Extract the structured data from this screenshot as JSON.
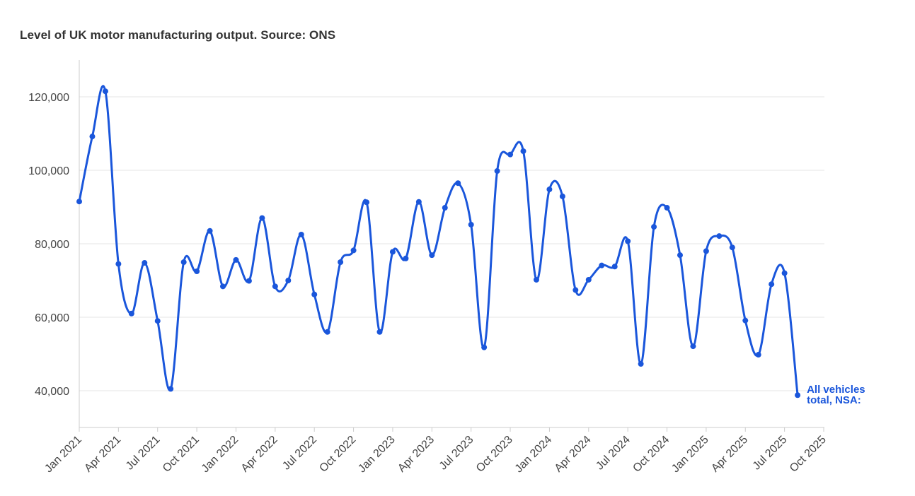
{
  "chart_data": {
    "type": "line",
    "title": "Level of UK motor manufacturing output. Source: ONS",
    "xlabel": "",
    "ylabel": "",
    "ylim": [
      30000,
      130000
    ],
    "y_ticks": [
      {
        "value": 40000,
        "label": "40,000"
      },
      {
        "value": 60000,
        "label": "60,000"
      },
      {
        "value": 80000,
        "label": "80,000"
      },
      {
        "value": 100000,
        "label": "100,000"
      },
      {
        "value": 120000,
        "label": "120,000"
      }
    ],
    "x_ticks": [
      "Jan 2021",
      "Apr 2021",
      "Jul 2021",
      "Oct 2021",
      "Jan 2022",
      "Apr 2022",
      "Jul 2022",
      "Oct 2022",
      "Jan 2023",
      "Apr 2023",
      "Jul 2023",
      "Oct 2023",
      "Jan 2024",
      "Apr 2024",
      "Jul 2024",
      "Oct 2024",
      "Jan 2025",
      "Apr 2025",
      "Jul 2025",
      "Oct 2025"
    ],
    "grid": true,
    "legend": "end-label",
    "series": [
      {
        "name": "All vehicles total, NSA:",
        "label_lines": [
          "All vehicles",
          "total, NSA:"
        ],
        "color": "#1a56db",
        "x": [
          "2021-01",
          "2021-02",
          "2021-03",
          "2021-04",
          "2021-05",
          "2021-06",
          "2021-07",
          "2021-08",
          "2021-09",
          "2021-10",
          "2021-11",
          "2021-12",
          "2022-01",
          "2022-02",
          "2022-03",
          "2022-04",
          "2022-05",
          "2022-06",
          "2022-07",
          "2022-08",
          "2022-09",
          "2022-10",
          "2022-11",
          "2022-12",
          "2023-01",
          "2023-02",
          "2023-03",
          "2023-04",
          "2023-05",
          "2023-06",
          "2023-07",
          "2023-08",
          "2023-09",
          "2023-10",
          "2023-11",
          "2023-12",
          "2024-01",
          "2024-02",
          "2024-03",
          "2024-04",
          "2024-05",
          "2024-06",
          "2024-07",
          "2024-08",
          "2024-09",
          "2024-10",
          "2024-11",
          "2024-12",
          "2025-01",
          "2025-02",
          "2025-03",
          "2025-04",
          "2025-05",
          "2025-06",
          "2025-07",
          "2025-08"
        ],
        "values": [
          91500,
          109200,
          121500,
          74500,
          61000,
          74800,
          59000,
          40500,
          75000,
          72500,
          83500,
          68400,
          75600,
          69900,
          87000,
          68400,
          70000,
          82500,
          66200,
          56000,
          75000,
          78200,
          91300,
          56000,
          77800,
          76000,
          91400,
          76900,
          89800,
          96500,
          85200,
          51800,
          99800,
          104300,
          105200,
          70200,
          94800,
          92900,
          67400,
          70200,
          74100,
          73800,
          80700,
          47300,
          84600,
          89800,
          76900,
          52100,
          78000,
          82100,
          79000,
          59100,
          49800,
          69000,
          72000,
          38800
        ]
      }
    ]
  }
}
